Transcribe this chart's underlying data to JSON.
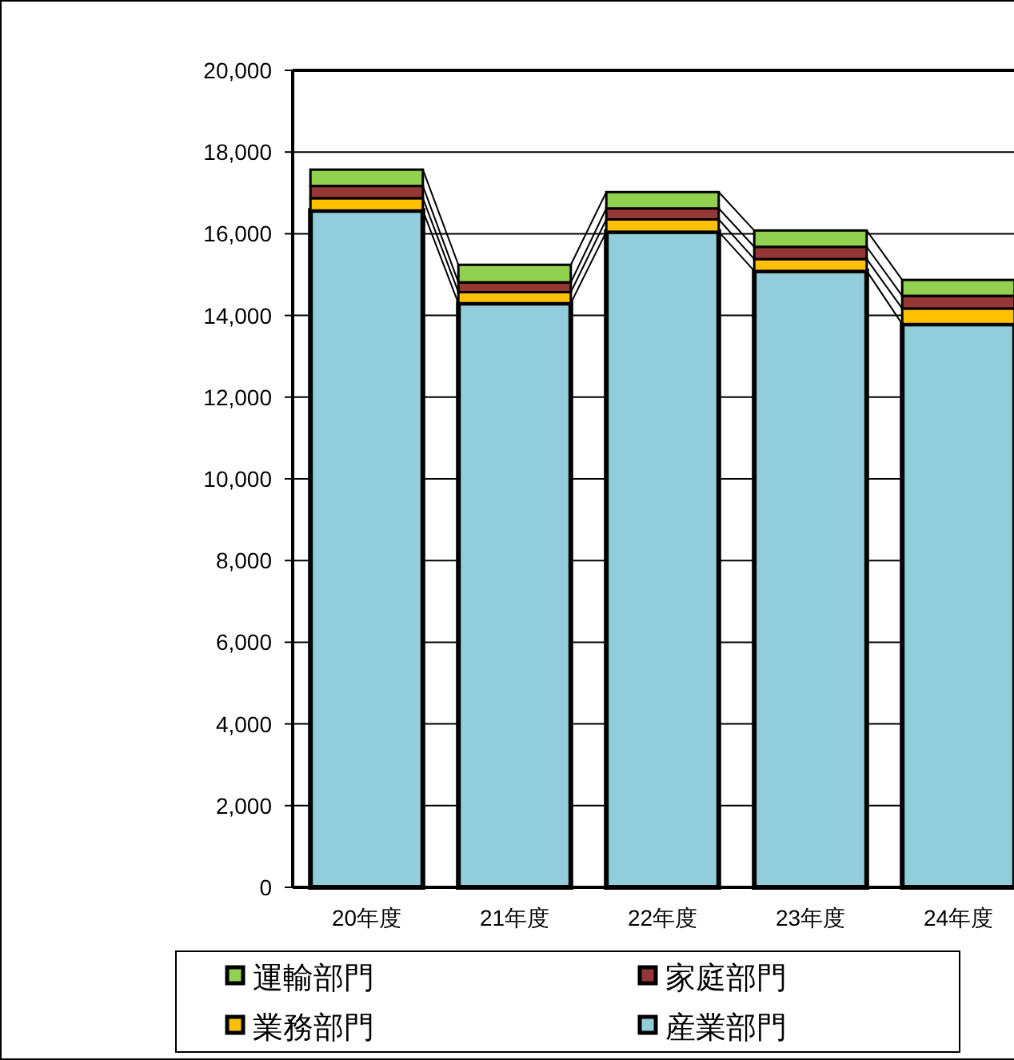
{
  "chart_data": {
    "type": "bar",
    "stacked": true,
    "categories": [
      "20年度",
      "21年度",
      "22年度",
      "23年度",
      "24年度"
    ],
    "series": [
      {
        "name": "産業部門",
        "color": "#92cddc",
        "values": [
          16570,
          14300,
          16050,
          15090,
          13790
        ]
      },
      {
        "name": "業務部門",
        "color": "#ffc000",
        "values": [
          300,
          270,
          300,
          290,
          380
        ]
      },
      {
        "name": "家庭部門",
        "color": "#953735",
        "values": [
          300,
          240,
          270,
          300,
          310
        ]
      },
      {
        "name": "運輸部門",
        "color": "#92d050",
        "values": [
          400,
          430,
          400,
          400,
          390
        ]
      }
    ],
    "ylim": [
      0,
      20000
    ],
    "yticks": [
      {
        "value": 0,
        "label": "0"
      },
      {
        "value": 2000,
        "label": "2,000"
      },
      {
        "value": 4000,
        "label": "4,000"
      },
      {
        "value": 6000,
        "label": "6,000"
      },
      {
        "value": 8000,
        "label": "8,000"
      },
      {
        "value": 10000,
        "label": "10,000"
      },
      {
        "value": 12000,
        "label": "12,000"
      },
      {
        "value": 14000,
        "label": "14,000"
      },
      {
        "value": 16000,
        "label": "16,000"
      },
      {
        "value": 18000,
        "label": "18,000"
      },
      {
        "value": 20000,
        "label": "20,000"
      }
    ],
    "grid": "y",
    "legend": "bottom"
  }
}
